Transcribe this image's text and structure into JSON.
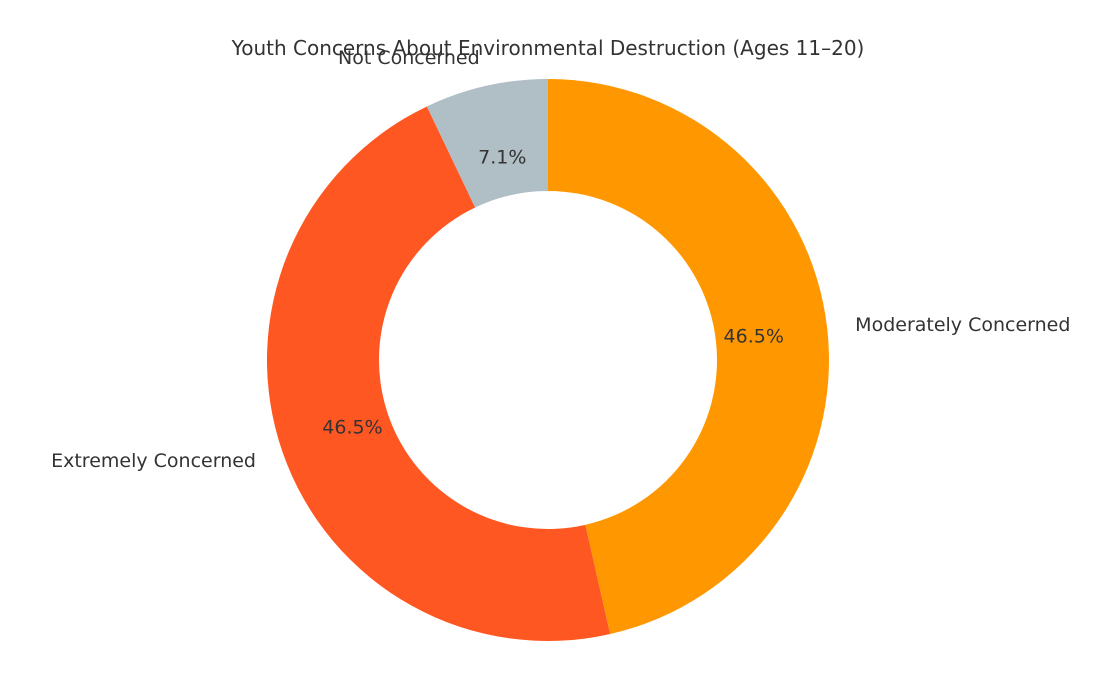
{
  "chart_data": {
    "type": "pie",
    "title": "Youth Concerns About Environmental Destruction (Ages 11–20)",
    "donut": true,
    "start": "top",
    "direction": "clockwise",
    "slices": [
      {
        "label": "Moderately Concerned",
        "value": 46.5,
        "pct_label": "46.5%",
        "color": "#FF9800"
      },
      {
        "label": "Extremely Concerned",
        "value": 46.5,
        "pct_label": "46.5%",
        "color": "#FF5722"
      },
      {
        "label": "Not Concerned",
        "value": 7.1,
        "pct_label": "7.1%",
        "color": "#B0BEC5"
      }
    ]
  }
}
